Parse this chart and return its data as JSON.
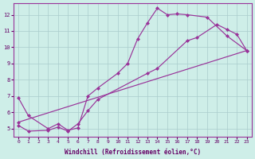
{
  "bg_color": "#ceeee8",
  "grid_color": "#aacccc",
  "line_color": "#993399",
  "xlabel": "Windchill (Refroidissement éolien,°C)",
  "series": [
    {
      "x": [
        0,
        1,
        3,
        4,
        5,
        6,
        7,
        8,
        10,
        11,
        12,
        13,
        14,
        15,
        16,
        17,
        19,
        21,
        23
      ],
      "y": [
        6.9,
        5.8,
        5.0,
        5.3,
        4.9,
        5.05,
        7.0,
        7.5,
        8.4,
        9.0,
        10.5,
        11.5,
        12.4,
        12.0,
        12.05,
        12.0,
        11.85,
        10.7,
        9.8
      ]
    },
    {
      "x": [
        0,
        1,
        3,
        4,
        5,
        6,
        7,
        8,
        13,
        14,
        17,
        18,
        20,
        21,
        22,
        23
      ],
      "y": [
        5.2,
        4.85,
        4.9,
        5.1,
        4.85,
        5.3,
        6.1,
        6.8,
        8.4,
        8.7,
        10.4,
        10.6,
        11.4,
        11.1,
        10.8,
        9.8
      ]
    },
    {
      "x": [
        0,
        23
      ],
      "y": [
        5.4,
        9.8
      ]
    }
  ],
  "xlim": [
    -0.5,
    23.5
  ],
  "ylim": [
    4.5,
    12.7
  ],
  "yticks": [
    5,
    6,
    7,
    8,
    9,
    10,
    11,
    12
  ],
  "xticks": [
    0,
    1,
    2,
    3,
    4,
    5,
    6,
    7,
    8,
    9,
    10,
    11,
    12,
    13,
    14,
    15,
    16,
    17,
    18,
    19,
    20,
    21,
    22,
    23
  ]
}
